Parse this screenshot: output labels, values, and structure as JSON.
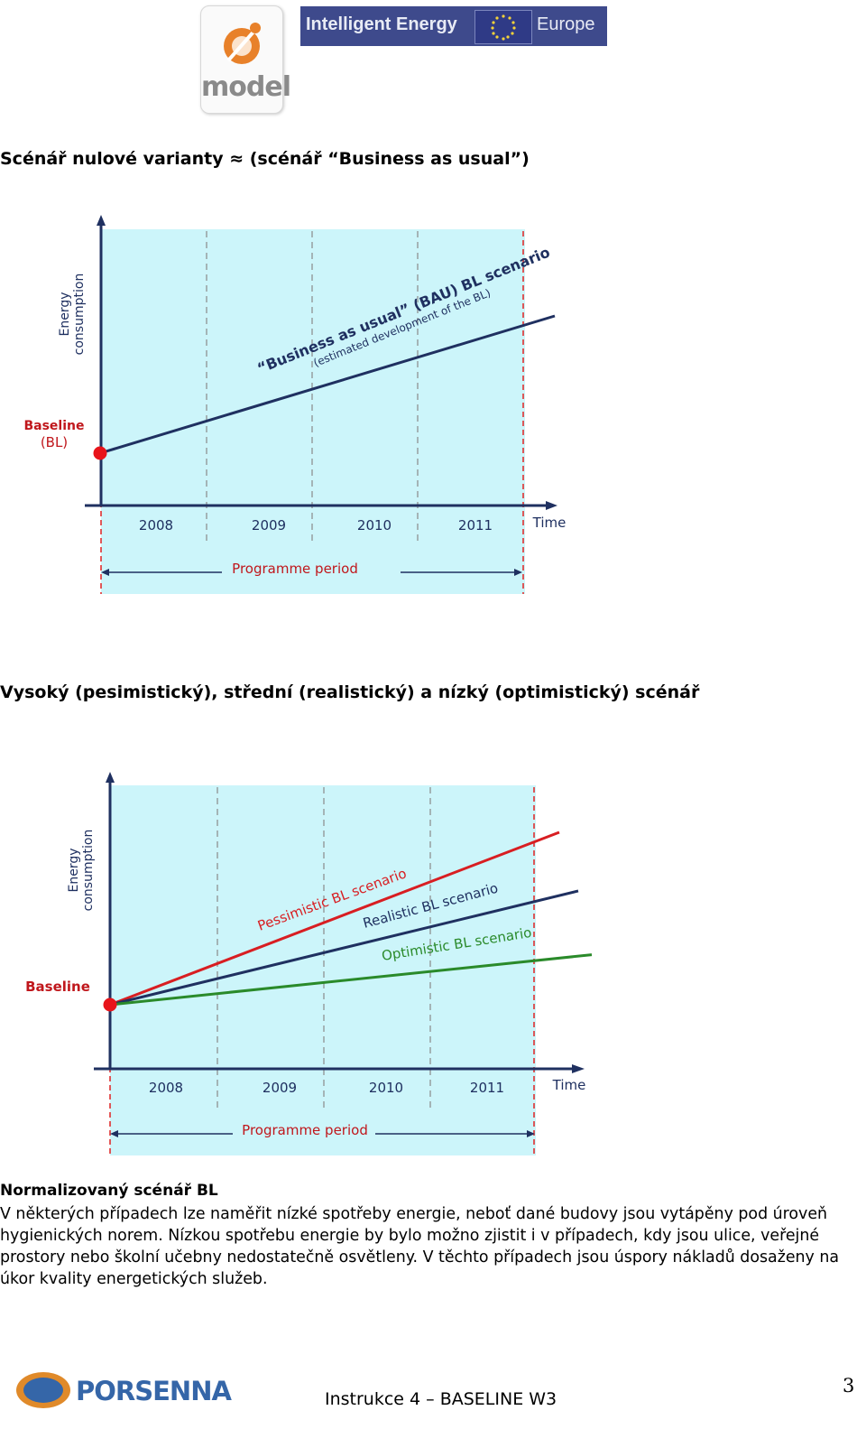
{
  "header": {
    "model_logo_text": "model",
    "iee_logo_left": "Intelligent Energy",
    "iee_logo_right": "Europe"
  },
  "sections": {
    "bau_title": "Scénář nulové varianty ≈ (scénář “Business as usual”)",
    "scenarios_title": "Vysoký (pesimistický), střední (realistický) a nízký (optimistický) scénář"
  },
  "chart_data": [
    {
      "type": "line",
      "ylabel_line1": "Energy",
      "ylabel_line2": "consumption",
      "xlabel": "Time",
      "categories": [
        "2008",
        "2009",
        "2010",
        "2011"
      ],
      "baseline_label_line1": "Baseline",
      "baseline_label_line2": "(BL)",
      "period_label": "Programme period",
      "series": [
        {
          "name": "“Business as usual” (BAU) BL scenario",
          "subtitle": "(estimated development of the BL)",
          "start": 0.0,
          "end": 1.0,
          "color": "#1f3060"
        }
      ],
      "colors": {
        "background": "#ccf5fa",
        "baseline_point": "#e8141a",
        "baseline_text": "#c0171c"
      }
    },
    {
      "type": "line",
      "ylabel_line1": "Energy",
      "ylabel_line2": "consumption",
      "xlabel": "Time",
      "categories": [
        "2008",
        "2009",
        "2010",
        "2011"
      ],
      "baseline_label": "Baseline",
      "period_label": "Programme period",
      "series": [
        {
          "name": "Pessimistic BL scenario",
          "start": 0.0,
          "end": 1.0,
          "color": "#d81e22"
        },
        {
          "name": "Realistic BL scenario",
          "start": 0.0,
          "end": 0.66,
          "color": "#1f3060"
        },
        {
          "name": "Optimistic BL scenario",
          "start": 0.0,
          "end": 0.29,
          "color": "#2a8a2a"
        }
      ],
      "colors": {
        "background": "#ccf5fa",
        "baseline_point": "#e8141a",
        "baseline_text": "#c0171c"
      }
    }
  ],
  "normalized": {
    "title": "Normalizovaný scénář BL",
    "text": "V některých případech lze naměřit nízké spotřeby energie, neboť dané budovy jsou vytápěny pod úroveň hygienických norem. Nízkou spotřebu energie by bylo možno zjistit i v případech, kdy jsou ulice, veřejné prostory nebo školní učebny nedostatečně osvětleny. V těchto případech jsou úspory nákladů dosaženy na úkor kvality energetických služeb."
  },
  "footer": {
    "logo_text": "PORSENNA",
    "center_text": "Instrukce 4 – BASELINE W3",
    "page_number": "3"
  }
}
